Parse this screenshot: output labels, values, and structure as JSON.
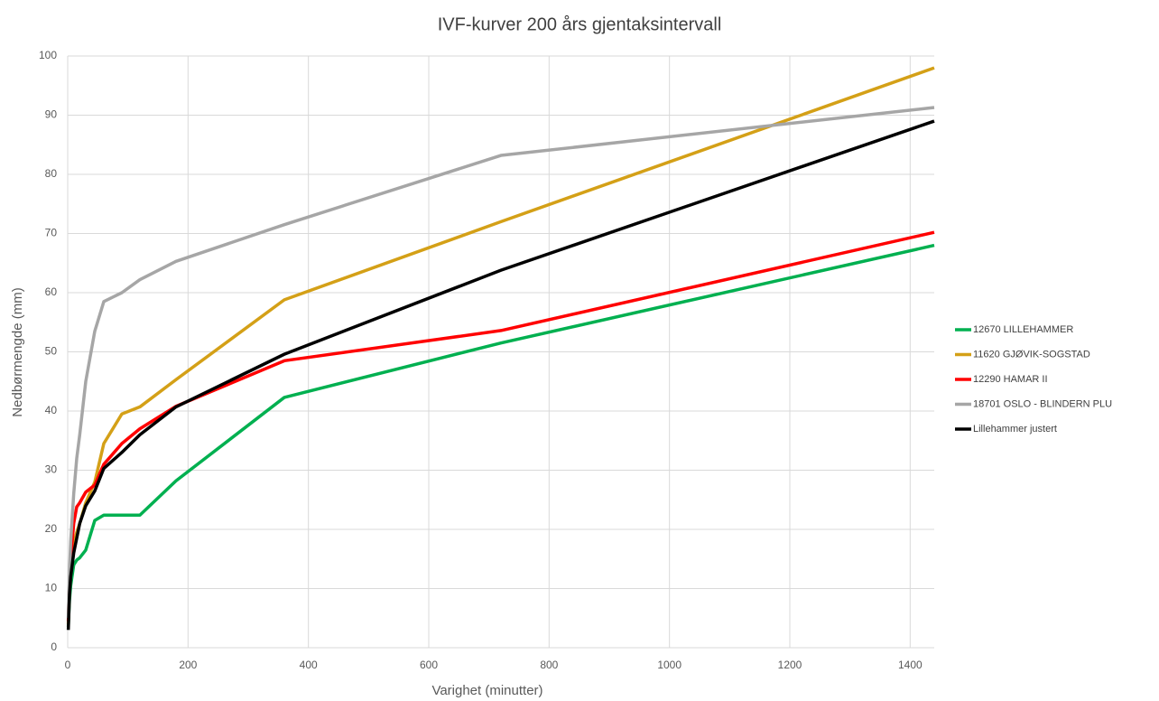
{
  "chart_data": {
    "type": "line",
    "title": "IVF-kurver 200 års gjentaksintervall",
    "x_label": "Varighet (minutter)",
    "y_label": "Nedbørmengde (mm)",
    "x": [
      1,
      2,
      3,
      5,
      10,
      15,
      20,
      30,
      45,
      60,
      90,
      120,
      180,
      360,
      720,
      1440
    ],
    "series": [
      {
        "name": "12670 LILLEHAMMER",
        "color": "#00b050",
        "values": [
          3.5,
          6,
          8,
          10.5,
          14,
          14.8,
          15.2,
          16.5,
          21.5,
          22.4,
          22.4,
          22.4,
          28.2,
          42.3,
          51.5,
          68
        ]
      },
      {
        "name": "11620 GJØVIK-SOGSTAD",
        "color": "#d4a017",
        "values": [
          4,
          7,
          9.5,
          13,
          17.5,
          19.5,
          21,
          24.5,
          28,
          34.5,
          39.5,
          40.7,
          45.3,
          58.8,
          72,
          98
        ]
      },
      {
        "name": "12290 HAMAR II",
        "color": "#ff0000",
        "values": [
          4.5,
          8,
          11,
          15,
          21,
          23.8,
          24.5,
          26.3,
          27.5,
          31,
          34.5,
          37,
          40.8,
          48.5,
          53.6,
          70.2
        ]
      },
      {
        "name": "18701 OSLO - BLINDERN PLU",
        "color": "#a6a6a6",
        "values": [
          5,
          9,
          13,
          18,
          26,
          32,
          36,
          45,
          53.5,
          58.5,
          60,
          62.2,
          65.3,
          71.5,
          83.2,
          91.3
        ]
      },
      {
        "name": "Lillehammer justert",
        "color": "#000000",
        "values": [
          3,
          6,
          9,
          12,
          16,
          18.5,
          21,
          24,
          26.5,
          30.3,
          33,
          36,
          40.7,
          49.6,
          63.8,
          89
        ]
      }
    ],
    "xlim": [
      0,
      1440
    ],
    "xticks": [
      0,
      200,
      400,
      600,
      800,
      1000,
      1200,
      1400
    ],
    "ylim": [
      0,
      100
    ],
    "yticks": [
      0,
      10,
      20,
      30,
      40,
      50,
      60,
      70,
      80,
      90,
      100
    ],
    "grid": true,
    "legend": "right"
  }
}
